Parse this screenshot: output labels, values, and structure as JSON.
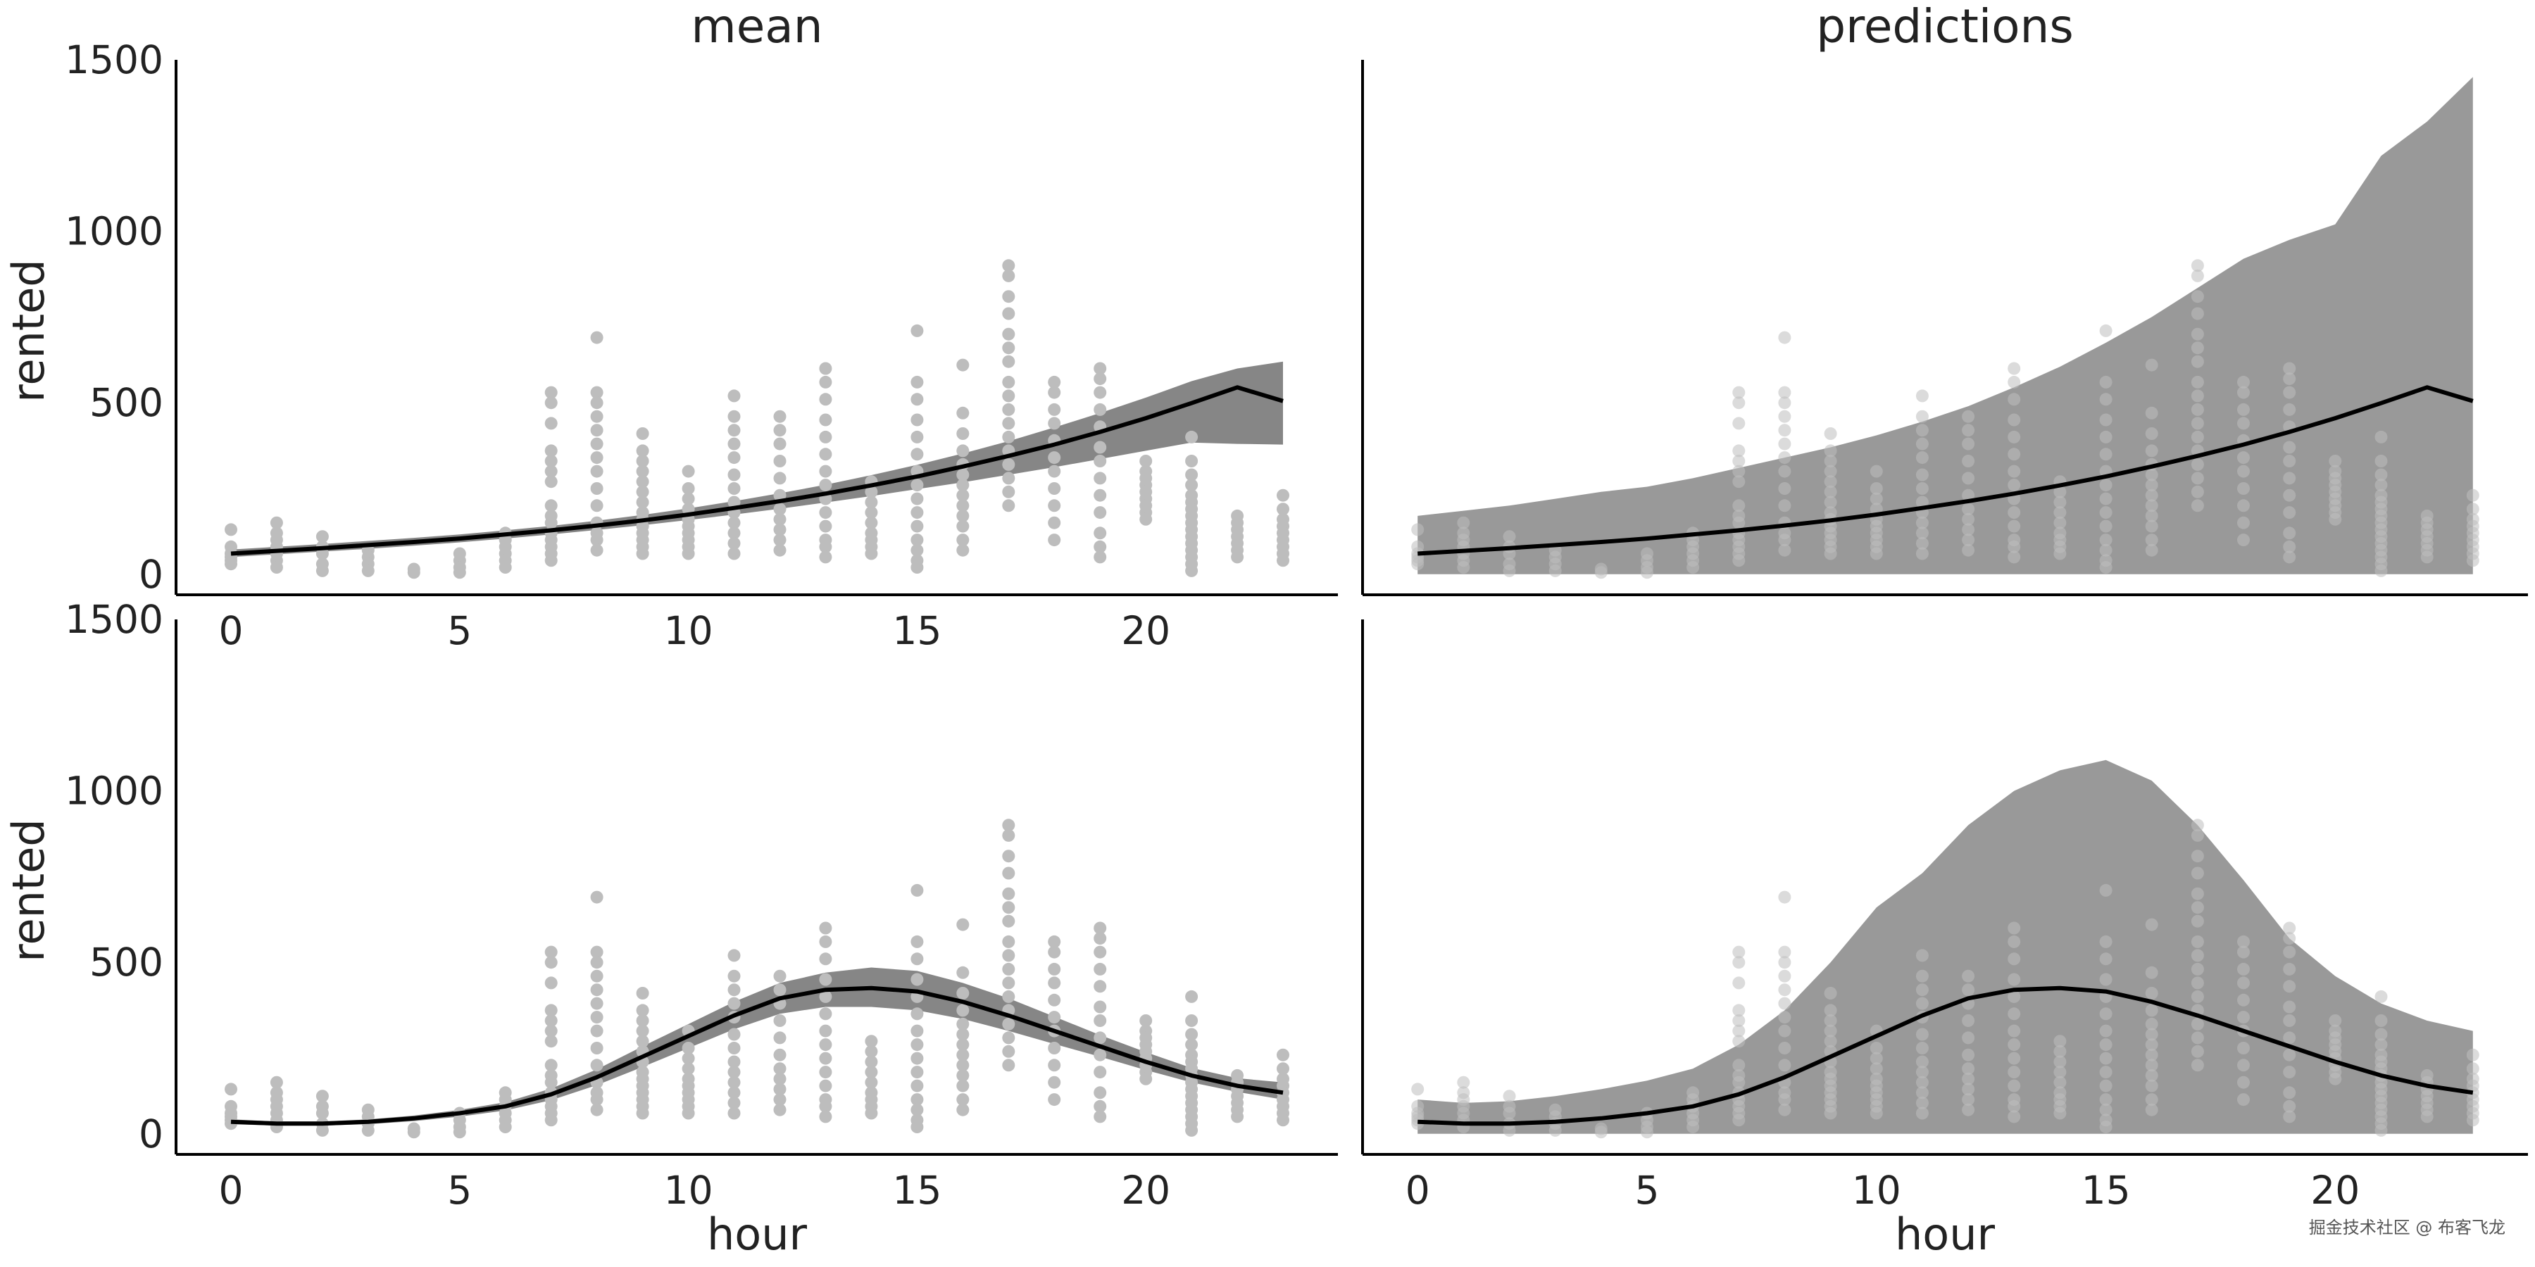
{
  "watermark": "掘金技术社区 @ 布客飞龙",
  "colors": {
    "observed_points": "#bdbdbd",
    "mean_band": "#808080",
    "prediction_band": "#999999",
    "mean_line": "#000000",
    "axes": "#000000"
  },
  "chart_data": [
    {
      "type": "scatter",
      "title": "mean",
      "xlabel": "",
      "ylabel": "rented",
      "xlim": [
        -1.2,
        24.2
      ],
      "ylim": [
        -60,
        1500
      ],
      "xticks": [
        "0",
        "5",
        "10",
        "15",
        "20"
      ],
      "yticks": [
        "0",
        "500",
        "1000",
        "1500"
      ],
      "x": [
        0,
        1,
        2,
        3,
        4,
        5,
        6,
        7,
        8,
        9,
        10,
        11,
        12,
        13,
        14,
        15,
        16,
        17,
        18,
        19,
        20,
        21,
        22,
        23
      ],
      "mean": [
        60,
        68,
        76,
        85,
        94,
        104,
        116,
        128,
        142,
        157,
        174,
        193,
        213,
        235,
        259,
        285,
        314,
        345,
        378,
        415,
        455,
        499,
        545,
        505
      ],
      "band_low": [
        50,
        58,
        66,
        74,
        83,
        93,
        104,
        116,
        129,
        143,
        158,
        174,
        191,
        209,
        228,
        248,
        268,
        290,
        312,
        336,
        360,
        384,
        380,
        378
      ],
      "band_high": [
        72,
        80,
        88,
        97,
        106,
        116,
        128,
        141,
        156,
        173,
        192,
        213,
        236,
        261,
        289,
        319,
        352,
        388,
        428,
        470,
        515,
        563,
        600,
        620
      ],
      "points": [
        {
          "x": 0,
          "values": [
            130,
            80,
            60,
            50,
            40,
            30
          ]
        },
        {
          "x": 1,
          "values": [
            150,
            120,
            100,
            80,
            60,
            40,
            20
          ]
        },
        {
          "x": 2,
          "values": [
            110,
            80,
            60,
            30,
            10
          ]
        },
        {
          "x": 3,
          "values": [
            70,
            50,
            30,
            10
          ]
        },
        {
          "x": 4,
          "values": [
            15,
            5
          ]
        },
        {
          "x": 5,
          "values": [
            60,
            40,
            20,
            5
          ]
        },
        {
          "x": 6,
          "values": [
            120,
            100,
            80,
            60,
            40,
            20
          ]
        },
        {
          "x": 7,
          "values": [
            530,
            500,
            440,
            360,
            330,
            300,
            270,
            200,
            170,
            150,
            120,
            100,
            80,
            60,
            40
          ]
        },
        {
          "x": 8,
          "values": [
            690,
            530,
            500,
            460,
            420,
            380,
            340,
            300,
            250,
            200,
            150,
            120,
            100,
            70
          ]
        },
        {
          "x": 9,
          "values": [
            410,
            360,
            330,
            300,
            270,
            240,
            210,
            180,
            160,
            140,
            120,
            100,
            80,
            60
          ]
        },
        {
          "x": 10,
          "values": [
            300,
            250,
            220,
            190,
            160,
            140,
            120,
            100,
            80,
            60
          ]
        },
        {
          "x": 11,
          "values": [
            520,
            460,
            420,
            380,
            340,
            290,
            250,
            210,
            180,
            150,
            120,
            90,
            60
          ]
        },
        {
          "x": 12,
          "values": [
            460,
            420,
            380,
            330,
            280,
            230,
            190,
            160,
            130,
            100,
            70
          ]
        },
        {
          "x": 13,
          "values": [
            600,
            560,
            510,
            450,
            400,
            350,
            300,
            260,
            220,
            180,
            140,
            100,
            80,
            50
          ]
        },
        {
          "x": 14,
          "values": [
            270,
            240,
            210,
            180,
            150,
            120,
            100,
            80,
            60
          ]
        },
        {
          "x": 15,
          "values": [
            710,
            560,
            510,
            450,
            400,
            350,
            300,
            260,
            220,
            180,
            140,
            100,
            70,
            40,
            20
          ]
        },
        {
          "x": 16,
          "values": [
            610,
            470,
            410,
            360,
            320,
            290,
            260,
            230,
            200,
            170,
            140,
            100,
            70
          ]
        },
        {
          "x": 17,
          "values": [
            900,
            870,
            810,
            760,
            700,
            660,
            620,
            560,
            520,
            480,
            440,
            400,
            360,
            320,
            280,
            240,
            200
          ]
        },
        {
          "x": 18,
          "values": [
            560,
            530,
            480,
            440,
            390,
            340,
            300,
            250,
            200,
            150,
            100
          ]
        },
        {
          "x": 19,
          "values": [
            600,
            570,
            530,
            480,
            430,
            370,
            330,
            280,
            230,
            180,
            120,
            80,
            50
          ]
        },
        {
          "x": 20,
          "values": [
            330,
            300,
            280,
            260,
            240,
            220,
            200,
            180,
            160
          ]
        },
        {
          "x": 21,
          "values": [
            400,
            330,
            290,
            260,
            230,
            210,
            190,
            170,
            150,
            130,
            110,
            90,
            70,
            50,
            30,
            10
          ]
        },
        {
          "x": 22,
          "values": [
            170,
            150,
            130,
            110,
            90,
            70,
            50
          ]
        },
        {
          "x": 23,
          "values": [
            230,
            190,
            160,
            140,
            120,
            100,
            80,
            60,
            40
          ]
        }
      ]
    },
    {
      "type": "scatter",
      "title": "predictions",
      "xlabel": "",
      "ylabel": "",
      "xlim": [
        -1.2,
        24.2
      ],
      "ylim": [
        -60,
        1500
      ],
      "xticks": [],
      "yticks": [],
      "x": [
        0,
        1,
        2,
        3,
        4,
        5,
        6,
        7,
        8,
        9,
        10,
        11,
        12,
        13,
        14,
        15,
        16,
        17,
        18,
        19,
        20,
        21,
        22,
        23
      ],
      "mean": [
        60,
        68,
        76,
        85,
        94,
        104,
        116,
        128,
        142,
        157,
        174,
        193,
        213,
        235,
        259,
        285,
        314,
        345,
        378,
        415,
        455,
        499,
        545,
        505
      ],
      "band_low": [
        0,
        0,
        0,
        0,
        0,
        0,
        0,
        0,
        0,
        0,
        0,
        0,
        0,
        0,
        0,
        0,
        0,
        0,
        0,
        0,
        0,
        0,
        0,
        0
      ],
      "band_high": [
        170,
        185,
        200,
        220,
        240,
        255,
        280,
        310,
        340,
        370,
        405,
        445,
        490,
        545,
        605,
        675,
        750,
        835,
        920,
        975,
        1020,
        1220,
        1320,
        1450
      ],
      "points_ref": "same as mean panel"
    },
    {
      "type": "scatter",
      "title": "",
      "xlabel": "hour",
      "ylabel": "rented",
      "xlim": [
        -1.2,
        24.2
      ],
      "ylim": [
        -60,
        1500
      ],
      "xticks": [
        "0",
        "5",
        "10",
        "15",
        "20"
      ],
      "yticks": [
        "0",
        "500",
        "1000",
        "1500"
      ],
      "x": [
        0,
        1,
        2,
        3,
        4,
        5,
        6,
        7,
        8,
        9,
        10,
        11,
        12,
        13,
        14,
        15,
        16,
        17,
        18,
        19,
        20,
        21,
        22,
        23
      ],
      "mean": [
        35,
        30,
        30,
        35,
        45,
        60,
        80,
        115,
        165,
        225,
        285,
        345,
        395,
        420,
        425,
        415,
        385,
        345,
        300,
        255,
        210,
        170,
        140,
        120
      ],
      "band_low": [
        28,
        24,
        24,
        28,
        37,
        50,
        68,
        98,
        142,
        195,
        250,
        305,
        350,
        370,
        370,
        360,
        335,
        300,
        262,
        225,
        186,
        150,
        122,
        100
      ],
      "band_high": [
        42,
        36,
        36,
        42,
        53,
        70,
        92,
        132,
        188,
        255,
        320,
        385,
        440,
        470,
        485,
        475,
        440,
        395,
        342,
        288,
        238,
        192,
        162,
        150
      ],
      "points_ref": "same as mean panel"
    },
    {
      "type": "scatter",
      "title": "",
      "xlabel": "hour",
      "ylabel": "",
      "xlim": [
        -1.2,
        24.2
      ],
      "ylim": [
        -60,
        1500
      ],
      "xticks": [
        "0",
        "5",
        "10",
        "15",
        "20"
      ],
      "yticks": [],
      "x": [
        0,
        1,
        2,
        3,
        4,
        5,
        6,
        7,
        8,
        9,
        10,
        11,
        12,
        13,
        14,
        15,
        16,
        17,
        18,
        19,
        20,
        21,
        22,
        23
      ],
      "mean": [
        35,
        30,
        30,
        35,
        45,
        60,
        80,
        115,
        165,
        225,
        285,
        345,
        395,
        420,
        425,
        415,
        385,
        345,
        300,
        255,
        210,
        170,
        140,
        120
      ],
      "band_low": [
        0,
        0,
        0,
        0,
        0,
        0,
        0,
        0,
        0,
        0,
        0,
        0,
        0,
        0,
        0,
        0,
        0,
        0,
        0,
        0,
        0,
        0,
        0,
        0
      ],
      "band_high": [
        100,
        90,
        95,
        110,
        130,
        155,
        190,
        260,
        360,
        500,
        660,
        760,
        900,
        1000,
        1060,
        1090,
        1030,
        900,
        740,
        570,
        460,
        380,
        330,
        300
      ],
      "points_ref": "same as mean panel"
    }
  ]
}
